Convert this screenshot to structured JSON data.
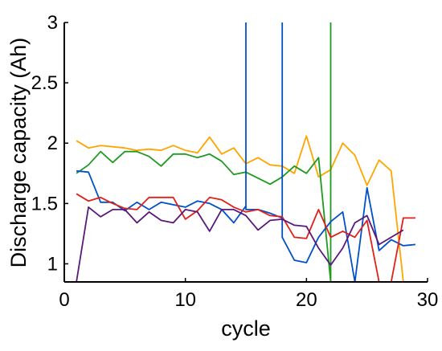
{
  "chart_data": {
    "type": "line",
    "title": "",
    "xlabel": "cycle",
    "ylabel": "Discharge capacity (Ah)",
    "xlim": [
      0,
      30
    ],
    "ylim": [
      0.85,
      3
    ],
    "xticks": [
      0,
      10,
      20,
      30
    ],
    "yticks": [
      1,
      1.5,
      2,
      2.5,
      3
    ],
    "xtick_labels": [
      "0",
      "10",
      "20",
      "30"
    ],
    "ytick_labels": [
      "1",
      "1.5",
      "2",
      "2.5",
      "3"
    ],
    "grid": false,
    "legend": "none",
    "series": [
      {
        "color": "#FFA500",
        "points": [
          [
            1,
            2.02
          ],
          [
            2,
            1.96
          ],
          [
            3,
            1.98
          ],
          [
            4,
            1.97
          ],
          [
            5,
            1.96
          ],
          [
            6,
            1.94
          ],
          [
            7,
            1.95
          ],
          [
            8,
            1.94
          ],
          [
            9,
            1.98
          ],
          [
            10,
            1.94
          ],
          [
            11,
            1.92
          ],
          [
            12,
            2.05
          ],
          [
            13,
            1.91
          ],
          [
            14,
            1.96
          ],
          [
            15,
            1.83
          ],
          [
            16,
            1.88
          ],
          [
            17,
            1.82
          ],
          [
            18,
            1.81
          ],
          [
            19,
            1.75
          ],
          [
            20,
            2.06
          ],
          [
            21,
            1.72
          ],
          [
            22,
            1.78
          ],
          [
            23,
            2.0
          ],
          [
            24,
            1.9
          ],
          [
            25,
            1.65
          ],
          [
            26,
            1.86
          ],
          [
            27,
            1.77
          ],
          [
            28,
            0.85
          ]
        ]
      },
      {
        "color": "#1F9A1F",
        "points": [
          [
            1,
            1.75
          ],
          [
            2,
            1.82
          ],
          [
            3,
            1.93
          ],
          [
            4,
            1.84
          ],
          [
            5,
            1.93
          ],
          [
            6,
            1.93
          ],
          [
            7,
            1.89
          ],
          [
            8,
            1.81
          ],
          [
            9,
            1.91
          ],
          [
            10,
            1.91
          ],
          [
            11,
            1.88
          ],
          [
            12,
            1.91
          ],
          [
            13,
            1.85
          ],
          [
            14,
            1.74
          ],
          [
            15,
            1.76
          ],
          [
            16,
            1.71
          ],
          [
            17,
            1.66
          ],
          [
            18,
            1.72
          ],
          [
            19,
            1.81
          ],
          [
            20,
            1.75
          ],
          [
            21,
            1.88
          ],
          [
            22,
            0.85
          ],
          [
            22,
            3
          ],
          [
            22,
            0.85
          ]
        ]
      },
      {
        "color": "#0050C8",
        "points": [
          [
            1,
            1.77
          ],
          [
            2,
            1.76
          ],
          [
            3,
            1.51
          ],
          [
            4,
            1.51
          ],
          [
            5,
            1.44
          ],
          [
            6,
            1.51
          ],
          [
            7,
            1.45
          ],
          [
            8,
            1.51
          ],
          [
            9,
            1.49
          ],
          [
            10,
            1.47
          ],
          [
            11,
            1.52
          ],
          [
            12,
            1.5
          ],
          [
            13,
            1.45
          ],
          [
            14,
            1.34
          ],
          [
            15,
            1.48
          ],
          [
            15,
            3
          ],
          [
            15,
            1.45
          ],
          [
            16,
            1.45
          ],
          [
            17,
            1.42
          ],
          [
            18,
            1.38
          ],
          [
            18,
            3
          ],
          [
            18,
            1.22
          ],
          [
            19,
            1.03
          ],
          [
            20,
            1.01
          ],
          [
            21,
            1.22
          ],
          [
            22,
            1.35
          ],
          [
            23,
            1.43
          ],
          [
            24,
            0.85
          ],
          [
            25,
            1.63
          ],
          [
            26,
            1.11
          ],
          [
            27,
            1.2
          ],
          [
            28,
            1.15
          ],
          [
            29,
            1.16
          ]
        ]
      },
      {
        "color": "#E0201A",
        "points": [
          [
            1,
            1.58
          ],
          [
            2,
            1.52
          ],
          [
            3,
            1.55
          ],
          [
            4,
            1.5
          ],
          [
            5,
            1.46
          ],
          [
            6,
            1.45
          ],
          [
            7,
            1.55
          ],
          [
            8,
            1.55
          ],
          [
            9,
            1.55
          ],
          [
            10,
            1.37
          ],
          [
            11,
            1.44
          ],
          [
            12,
            1.55
          ],
          [
            13,
            1.53
          ],
          [
            14,
            1.47
          ],
          [
            15,
            1.43
          ],
          [
            16,
            1.45
          ],
          [
            17,
            1.4
          ],
          [
            18,
            1.39
          ],
          [
            19,
            1.22
          ],
          [
            20,
            1.21
          ],
          [
            21,
            1.45
          ],
          [
            22,
            1.22
          ],
          [
            23,
            1.27
          ],
          [
            24,
            1.22
          ],
          [
            25,
            1.36
          ],
          [
            26,
            0.85
          ],
          [
            27,
            0.85
          ],
          [
            28,
            1.38
          ],
          [
            29,
            1.38
          ]
        ]
      },
      {
        "color": "#5A187A",
        "points": [
          [
            1,
            0.85
          ],
          [
            2,
            1.47
          ],
          [
            3,
            1.39
          ],
          [
            4,
            1.45
          ],
          [
            5,
            1.45
          ],
          [
            6,
            1.34
          ],
          [
            7,
            1.43
          ],
          [
            8,
            1.36
          ],
          [
            9,
            1.34
          ],
          [
            10,
            1.45
          ],
          [
            11,
            1.43
          ],
          [
            12,
            1.27
          ],
          [
            13,
            1.45
          ],
          [
            14,
            1.45
          ],
          [
            15,
            1.4
          ],
          [
            16,
            1.28
          ],
          [
            17,
            1.36
          ],
          [
            18,
            1.37
          ],
          [
            19,
            1.32
          ],
          [
            20,
            1.31
          ],
          [
            21,
            1.13
          ],
          [
            22,
            0.99
          ],
          [
            23,
            1.13
          ],
          [
            24,
            1.34
          ],
          [
            25,
            1.4
          ],
          [
            26,
            1.16
          ],
          [
            27,
            1.22
          ],
          [
            28,
            1.28
          ]
        ]
      }
    ]
  }
}
